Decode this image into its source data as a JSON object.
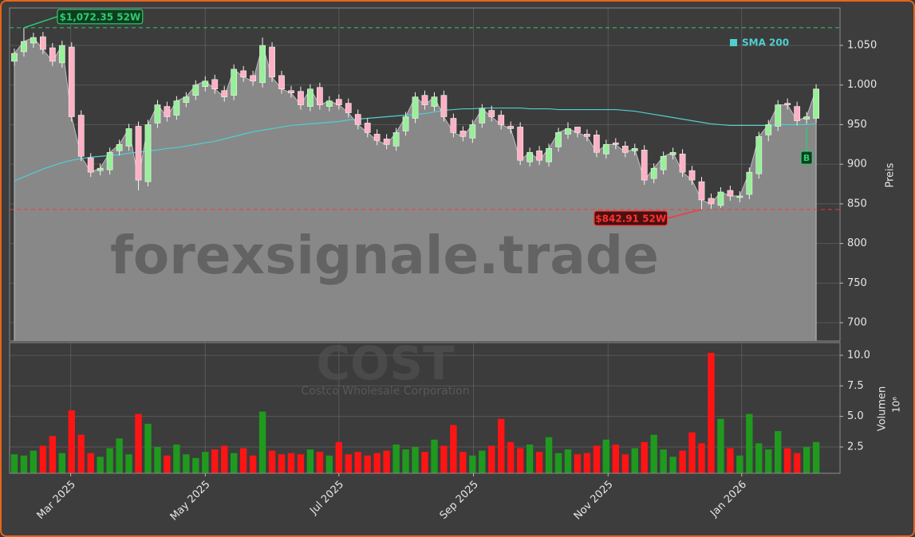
{
  "chart_data": {
    "type": "candlestick",
    "watermark": "forexsignale.trade",
    "ticker": "COST",
    "company": "Costco Wholesale Corporation",
    "categories": [
      null,
      null,
      null,
      null,
      null,
      null,
      null,
      null,
      null,
      null,
      null,
      null,
      null,
      null,
      null,
      null,
      null,
      null,
      null,
      null,
      null,
      null,
      null,
      null,
      null,
      null,
      null,
      null,
      null,
      null,
      null,
      null,
      null,
      null,
      null,
      null,
      null,
      null,
      null,
      null,
      null,
      null,
      null,
      null,
      null,
      null,
      null,
      null,
      null,
      null,
      null,
      null,
      null,
      null,
      null,
      null,
      null,
      null,
      null,
      null,
      null,
      null,
      null,
      null,
      null,
      null,
      null,
      null,
      null,
      null,
      null,
      null,
      null,
      null,
      null,
      null,
      null,
      null,
      null,
      null,
      null,
      null,
      null,
      null,
      null
    ],
    "xlim": [
      -0.5,
      86.5
    ],
    "xticks": [
      {
        "value": 5.9,
        "label": "Mar 2025"
      },
      {
        "value": 20,
        "label": "May 2025"
      },
      {
        "value": 34,
        "label": "Jul 2025"
      },
      {
        "value": 48.1,
        "label": "Sep 2025"
      },
      {
        "value": 62.2,
        "label": "Nov 2025"
      },
      {
        "value": 76.2,
        "label": "Jan 2026"
      }
    ],
    "open": [
      1030,
      1042,
      1053,
      1061,
      1047,
      1028,
      1048,
      962,
      908,
      892,
      893,
      917,
      923,
      948,
      878,
      952,
      973,
      962,
      978,
      987,
      998,
      1007,
      993,
      987,
      1018,
      1012,
      1003,
      1048,
      1012,
      993,
      992,
      973,
      997,
      973,
      982,
      977,
      963,
      952,
      938,
      932,
      923,
      942,
      958,
      987,
      973,
      987,
      958,
      942,
      933,
      952,
      968,
      962,
      948,
      947,
      903,
      917,
      903,
      922,
      938,
      947,
      938,
      937,
      913,
      927,
      923,
      917,
      918,
      882,
      893,
      912,
      913,
      892,
      878,
      857,
      848,
      867,
      858,
      862,
      888,
      937,
      948,
      977,
      973,
      957,
      958
    ],
    "high": [
      1046,
      1072.35,
      1066,
      1067,
      1053,
      1056,
      1054,
      968,
      914,
      901,
      921,
      931,
      951,
      954,
      956,
      981,
      979,
      986,
      991,
      1006,
      1011,
      1013,
      999,
      1026,
      1024,
      1018,
      1060,
      1054,
      1018,
      999,
      998,
      1001,
      1003,
      986,
      988,
      983,
      969,
      958,
      944,
      938,
      946,
      966,
      991,
      993,
      991,
      993,
      964,
      948,
      956,
      976,
      974,
      968,
      954,
      953,
      921,
      923,
      926,
      946,
      953,
      946,
      944,
      943,
      931,
      933,
      929,
      926,
      924,
      901,
      916,
      921,
      919,
      898,
      884,
      863,
      871,
      873,
      866,
      896,
      941,
      956,
      981,
      983,
      979,
      966,
      1001
    ],
    "low": [
      1024,
      1036,
      1047,
      1039,
      1024,
      1022,
      954,
      904,
      884,
      886,
      887,
      911,
      917,
      867,
      872,
      946,
      954,
      956,
      972,
      981,
      992,
      989,
      979,
      981,
      1004,
      999,
      997,
      1004,
      989,
      984,
      969,
      967,
      969,
      967,
      969,
      959,
      944,
      934,
      924,
      919,
      917,
      936,
      952,
      969,
      967,
      954,
      934,
      929,
      927,
      946,
      954,
      944,
      939,
      899,
      897,
      899,
      897,
      916,
      932,
      934,
      929,
      909,
      907,
      919,
      909,
      911,
      874,
      876,
      887,
      906,
      884,
      874,
      842.91,
      844,
      845,
      854,
      852,
      856,
      882,
      929,
      942,
      969,
      949,
      951,
      952
    ],
    "close": [
      1040,
      1055,
      1060,
      1045,
      1030,
      1050,
      960,
      910,
      890,
      895,
      915,
      925,
      945,
      880,
      950,
      975,
      960,
      980,
      985,
      1000,
      1005,
      995,
      985,
      1020,
      1010,
      1005,
      1050,
      1010,
      995,
      990,
      975,
      995,
      975,
      980,
      975,
      965,
      950,
      940,
      930,
      925,
      940,
      960,
      985,
      975,
      985,
      960,
      940,
      935,
      950,
      970,
      960,
      950,
      945,
      905,
      915,
      905,
      920,
      940,
      945,
      940,
      935,
      915,
      925,
      925,
      915,
      920,
      880,
      895,
      910,
      915,
      890,
      880,
      855,
      850,
      865,
      860,
      860,
      890,
      935,
      950,
      975,
      975,
      955,
      960,
      995
    ],
    "up_color": "#98f098",
    "down_color": "#ffb0c4",
    "area_color": "#888888",
    "ylabel": "Preis",
    "ylim": [
      676.9,
      1097.3
    ],
    "yticks": [
      700,
      750,
      800,
      850,
      900,
      950,
      {
        "value": 1000,
        "label": "1.000"
      },
      {
        "value": 1050,
        "label": "1.050"
      }
    ],
    "grid": true,
    "series": [
      {
        "name": "SMA 200",
        "color": "#4fd0d0",
        "values": [
          879,
          884,
          889,
          894,
          898,
          902,
          905,
          907,
          909,
          910,
          911,
          912,
          914,
          915,
          917,
          918,
          920,
          921,
          923,
          925,
          927,
          929,
          932,
          935,
          938,
          941,
          943,
          945,
          947,
          949,
          950,
          951,
          952,
          953,
          954,
          956,
          957,
          958,
          959,
          960,
          961,
          962,
          963,
          964,
          966,
          968,
          969,
          970,
          970,
          971,
          971,
          971,
          971,
          971,
          970,
          970,
          970,
          969,
          969,
          969,
          969,
          969,
          969,
          969,
          968,
          967,
          965,
          963,
          961,
          959,
          957,
          955,
          953,
          951,
          950,
          949,
          949,
          949,
          949,
          949,
          950,
          950,
          950,
          950,
          951
        ]
      }
    ],
    "legend": "upper right",
    "annotations": [
      {
        "text": "$1,072.35 52W",
        "value": 1072.35,
        "index": 1,
        "color": "#2ecc71",
        "bg": "#0f3d1f"
      },
      {
        "text": "$842.91 52W",
        "value": 842.91,
        "index": 72,
        "color": "#ff3333",
        "bg": "#4a1010"
      }
    ],
    "signals": [
      {
        "label": "B",
        "index": 83,
        "color": "#2ecc71",
        "bg": "#0f3d1f"
      }
    ],
    "volume": {
      "ylabel": "Volumen",
      "offset_text": "10⁶",
      "ylim": [
        0.35,
        11.04
      ],
      "yticks": [
        2.5,
        {
          "value": 5,
          "label": "5.0"
        },
        7.5,
        {
          "value": 10,
          "label": "10.0"
        }
      ],
      "up_color": "#1f9a1f",
      "down_color": "#ff1414",
      "values": [
        1.9,
        1.8,
        2.2,
        2.6,
        3.4,
        2.0,
        5.5,
        3.5,
        2.0,
        1.7,
        2.4,
        3.2,
        1.9,
        5.2,
        4.4,
        2.5,
        1.8,
        2.7,
        1.9,
        1.6,
        2.1,
        2.3,
        2.6,
        2.0,
        2.4,
        1.8,
        5.4,
        2.2,
        1.9,
        2.0,
        1.9,
        2.3,
        2.1,
        1.8,
        2.9,
        1.9,
        2.1,
        1.8,
        2.0,
        2.2,
        2.7,
        2.3,
        2.5,
        2.1,
        3.1,
        2.6,
        4.3,
        2.1,
        1.8,
        2.2,
        2.6,
        4.8,
        2.9,
        2.4,
        2.7,
        2.1,
        3.3,
        2.0,
        2.3,
        1.9,
        2.0,
        2.6,
        3.1,
        2.7,
        1.9,
        2.4,
        2.9,
        3.5,
        2.3,
        1.7,
        2.2,
        3.7,
        2.8,
        10.2,
        4.8,
        2.4,
        1.8,
        5.2,
        2.8,
        2.3,
        3.8,
        2.4,
        2.0,
        2.5,
        2.9
      ]
    }
  }
}
